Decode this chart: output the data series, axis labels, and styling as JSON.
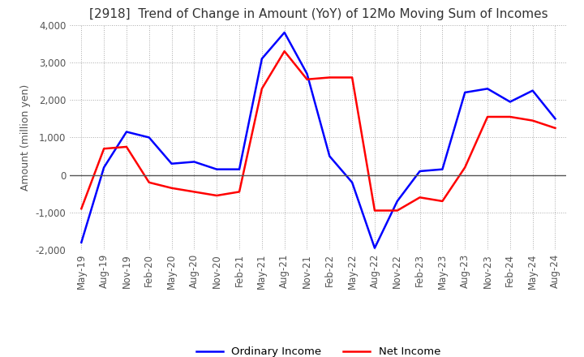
{
  "title": "[2918]  Trend of Change in Amount (YoY) of 12Mo Moving Sum of Incomes",
  "ylabel": "Amount (million yen)",
  "ylim": [
    -2000,
    4000
  ],
  "yticks": [
    -2000,
    -1000,
    0,
    1000,
    2000,
    3000,
    4000
  ],
  "x_labels": [
    "May-19",
    "Aug-19",
    "Nov-19",
    "Feb-20",
    "May-20",
    "Aug-20",
    "Nov-20",
    "Feb-21",
    "May-21",
    "Aug-21",
    "Nov-21",
    "Feb-22",
    "May-22",
    "Aug-22",
    "Nov-22",
    "Feb-23",
    "May-23",
    "Aug-23",
    "Nov-23",
    "Feb-24",
    "May-24",
    "Aug-24"
  ],
  "ordinary_income": [
    -1800,
    200,
    1150,
    1000,
    300,
    350,
    150,
    150,
    3100,
    3800,
    2700,
    500,
    -200,
    -1950,
    -700,
    100,
    150,
    2200,
    2300,
    1950,
    2250,
    1500
  ],
  "net_income": [
    -900,
    700,
    750,
    -200,
    -350,
    -450,
    -550,
    -450,
    2300,
    3300,
    2550,
    2600,
    2600,
    -950,
    -950,
    -600,
    -700,
    200,
    1550,
    1550,
    1450,
    1250
  ],
  "ordinary_color": "#0000ff",
  "net_color": "#ff0000",
  "background_color": "#ffffff",
  "grid_color": "#aaaaaa",
  "title_color": "#333333",
  "title_fontsize": 11,
  "tick_fontsize": 8.5,
  "ylabel_fontsize": 9
}
